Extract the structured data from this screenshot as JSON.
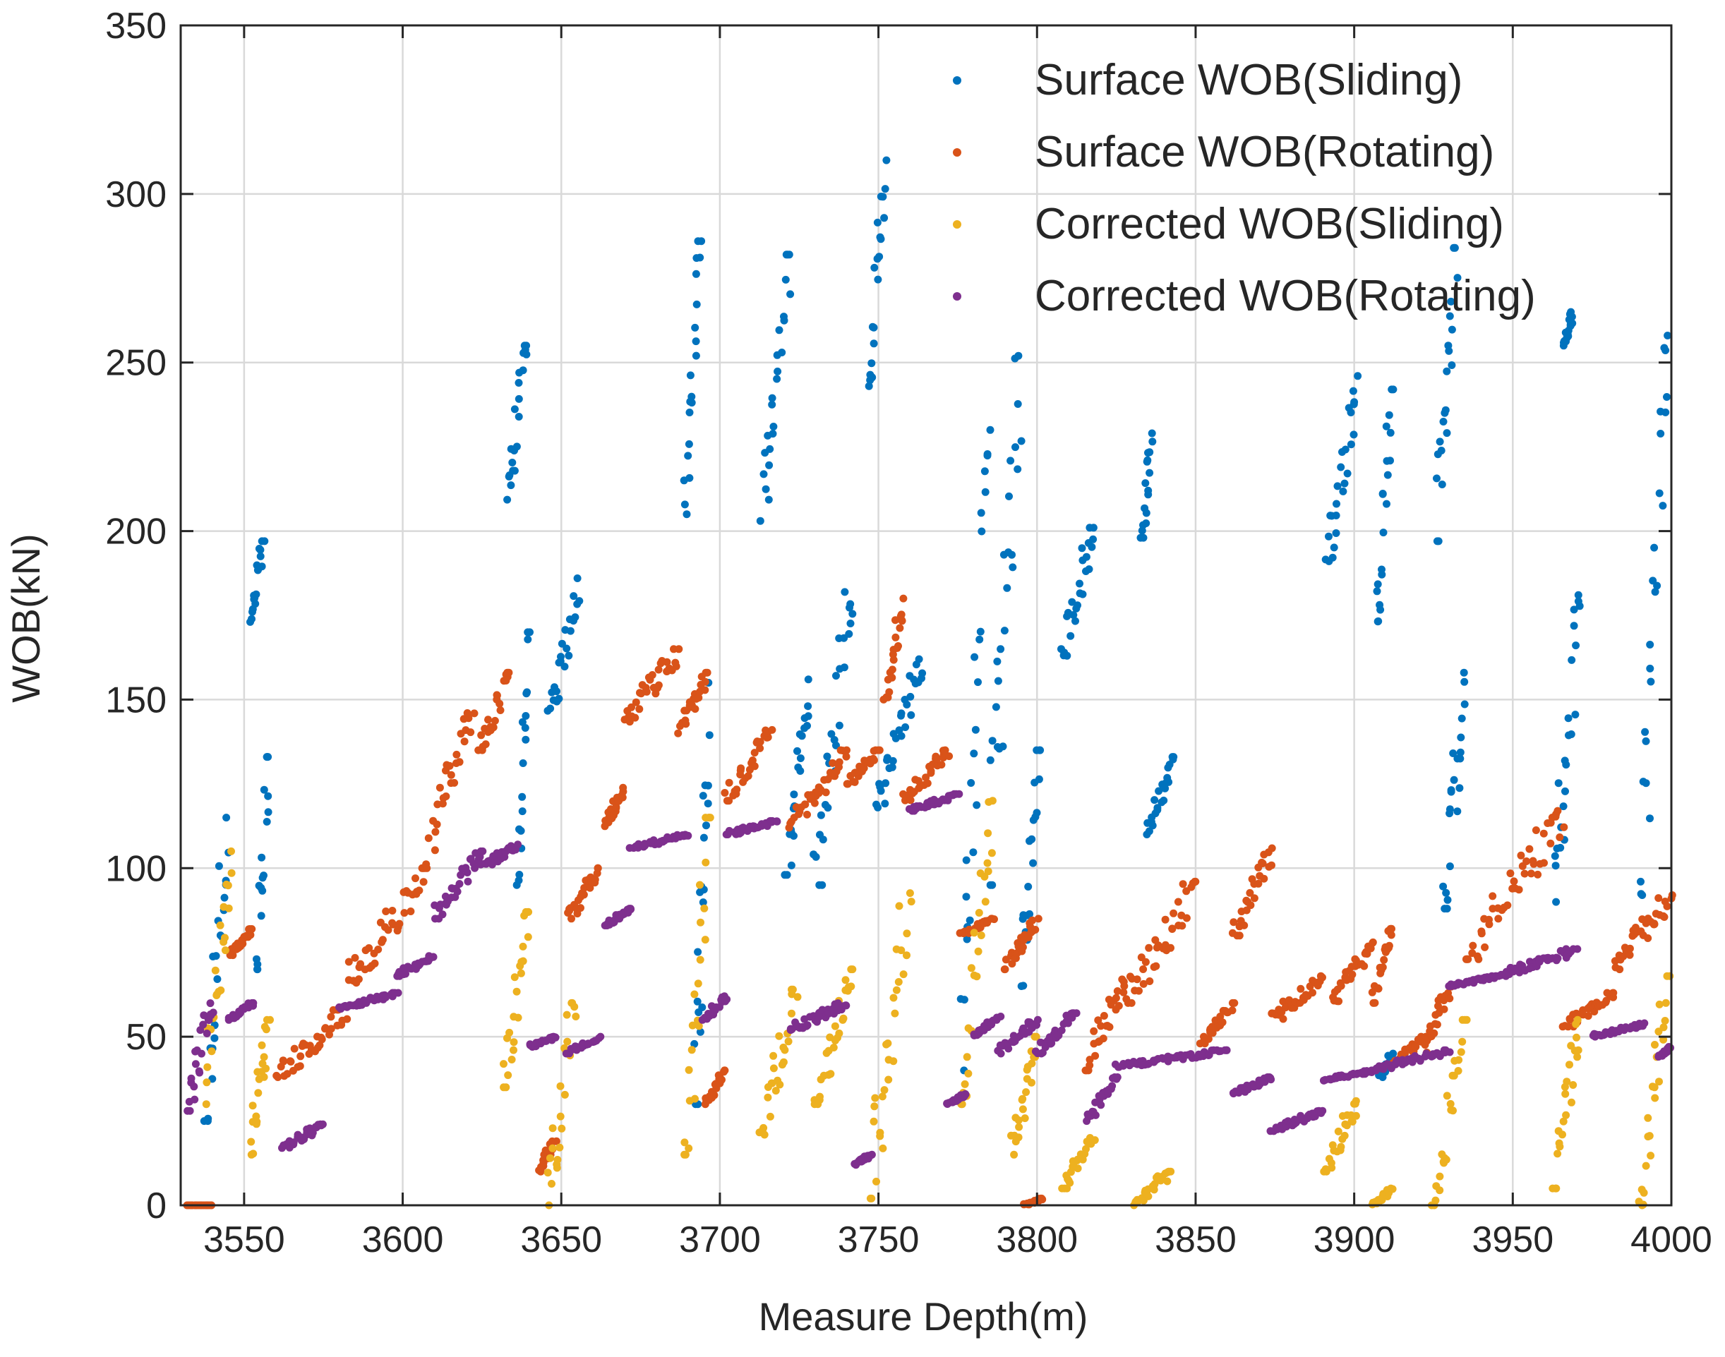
{
  "chart_data": {
    "type": "scatter",
    "title": "",
    "xlabel": "Measure Depth(m)",
    "ylabel": "WOB(kN)",
    "xlim": [
      3530,
      4000
    ],
    "ylim": [
      0,
      350
    ],
    "xticks": [
      3550,
      3600,
      3650,
      3700,
      3750,
      3800,
      3850,
      3900,
      3950,
      4000
    ],
    "yticks": [
      0,
      50,
      100,
      150,
      200,
      250,
      300,
      350
    ],
    "grid": true,
    "legend_position": "top-right",
    "series": [
      {
        "name": "Surface WOB(Sliding)",
        "color": "#0072BD",
        "clusters": [
          {
            "x": [
              3538,
              3545
            ],
            "y": [
              25,
              115
            ]
          },
          {
            "x": [
              3552,
              3556
            ],
            "y": [
              173,
              197
            ]
          },
          {
            "x": [
              3554,
              3558
            ],
            "y": [
              70,
              133
            ]
          },
          {
            "x": [
              3633,
              3639
            ],
            "y": [
              208,
              255
            ]
          },
          {
            "x": [
              3636,
              3640
            ],
            "y": [
              95,
              170
            ]
          },
          {
            "x": [
              3646,
              3656
            ],
            "y": [
              145,
              186
            ]
          },
          {
            "x": [
              3689,
              3694
            ],
            "y": [
              205,
              286
            ]
          },
          {
            "x": [
              3692,
              3697
            ],
            "y": [
              30,
              155
            ]
          },
          {
            "x": [
              3713,
              3722
            ],
            "y": [
              203,
              282
            ]
          },
          {
            "x": [
              3721,
              3728
            ],
            "y": [
              98,
              156
            ]
          },
          {
            "x": [
              3730,
              3742
            ],
            "y": [
              95,
              185
            ]
          },
          {
            "x": [
              3747,
              3752
            ],
            "y": [
              243,
              310
            ]
          },
          {
            "x": [
              3749,
              3764
            ],
            "y": [
              118,
              162
            ]
          },
          {
            "x": [
              3776,
              3785
            ],
            "y": [
              40,
              230
            ]
          },
          {
            "x": [
              3785,
              3795
            ],
            "y": [
              95,
              252
            ]
          },
          {
            "x": [
              3795,
              3801
            ],
            "y": [
              65,
              135
            ]
          },
          {
            "x": [
              3808,
              3818
            ],
            "y": [
              163,
              201
            ]
          },
          {
            "x": [
              3833,
              3836
            ],
            "y": [
              198,
              229
            ]
          },
          {
            "x": [
              3835,
              3843
            ],
            "y": [
              110,
              133
            ]
          },
          {
            "x": [
              3891,
              3901
            ],
            "y": [
              188,
              246
            ]
          },
          {
            "x": [
              3907,
              3912
            ],
            "y": [
              165,
              242
            ]
          },
          {
            "x": [
              3926,
              3932
            ],
            "y": [
              197,
              284
            ]
          },
          {
            "x": [
              3928,
              3935
            ],
            "y": [
              88,
              158
            ]
          },
          {
            "x": [
              3963,
              3971
            ],
            "y": [
              90,
              181
            ]
          },
          {
            "x": [
              3966,
              3969
            ],
            "y": [
              255,
              265
            ]
          },
          {
            "x": [
              3990,
              3999
            ],
            "y": [
              92,
              258
            ]
          },
          {
            "x": [
              3908,
              3912
            ],
            "y": [
              38,
              45
            ]
          }
        ]
      },
      {
        "name": "Surface WOB(Rotating)",
        "color": "#D95319",
        "clusters": [
          {
            "x": [
              3532,
              3540
            ],
            "y": [
              0,
              0
            ]
          },
          {
            "x": [
              3545,
              3553
            ],
            "y": [
              74,
              82
            ]
          },
          {
            "x": [
              3560,
              3582
            ],
            "y": [
              38,
              58
            ]
          },
          {
            "x": [
              3583,
              3606
            ],
            "y": [
              66,
              97
            ]
          },
          {
            "x": [
              3606,
              3622
            ],
            "y": [
              100,
              146
            ]
          },
          {
            "x": [
              3624,
              3634
            ],
            "y": [
              135,
              158
            ]
          },
          {
            "x": [
              3643,
              3648
            ],
            "y": [
              10,
              19
            ]
          },
          {
            "x": [
              3652,
              3662
            ],
            "y": [
              85,
              100
            ]
          },
          {
            "x": [
              3664,
              3670
            ],
            "y": [
              112,
              125
            ]
          },
          {
            "x": [
              3670,
              3687
            ],
            "y": [
              143,
              165
            ]
          },
          {
            "x": [
              3687,
              3696
            ],
            "y": [
              140,
              158
            ]
          },
          {
            "x": [
              3695,
              3702
            ],
            "y": [
              30,
              40
            ]
          },
          {
            "x": [
              3702,
              3716
            ],
            "y": [
              120,
              141
            ]
          },
          {
            "x": [
              3722,
              3740
            ],
            "y": [
              112,
              135
            ]
          },
          {
            "x": [
              3740,
              3750
            ],
            "y": [
              125,
              135
            ]
          },
          {
            "x": [
              3752,
              3758
            ],
            "y": [
              150,
              180
            ]
          },
          {
            "x": [
              3758,
              3772
            ],
            "y": [
              120,
              135
            ]
          },
          {
            "x": [
              3776,
              3786
            ],
            "y": [
              80,
              85
            ]
          },
          {
            "x": [
              3790,
              3800
            ],
            "y": [
              70,
              85
            ]
          },
          {
            "x": [
              3815,
              3828
            ],
            "y": [
              40,
              68
            ]
          },
          {
            "x": [
              3828,
              3850
            ],
            "y": [
              60,
              96
            ]
          },
          {
            "x": [
              3852,
              3862
            ],
            "y": [
              48,
              60
            ]
          },
          {
            "x": [
              3862,
              3874
            ],
            "y": [
              80,
              106
            ]
          },
          {
            "x": [
              3874,
              3890
            ],
            "y": [
              55,
              68
            ]
          },
          {
            "x": [
              3893,
              3906
            ],
            "y": [
              60,
              78
            ]
          },
          {
            "x": [
              3906,
              3912
            ],
            "y": [
              60,
              82
            ]
          },
          {
            "x": [
              3912,
              3922
            ],
            "y": [
              42,
              50
            ]
          },
          {
            "x": [
              3922,
              3930
            ],
            "y": [
              45,
              65
            ]
          },
          {
            "x": [
              3935,
              3966
            ],
            "y": [
              73,
              117
            ]
          },
          {
            "x": [
              3966,
              3982
            ],
            "y": [
              53,
              63
            ]
          },
          {
            "x": [
              3982,
              4000
            ],
            "y": [
              70,
              92
            ]
          },
          {
            "x": [
              3796,
              3802
            ],
            "y": [
              0,
              2
            ]
          }
        ]
      },
      {
        "name": "Corrected WOB(Sliding)",
        "color": "#EDB120",
        "clusters": [
          {
            "x": [
              3538,
              3546
            ],
            "y": [
              30,
              105
            ]
          },
          {
            "x": [
              3552,
              3558
            ],
            "y": [
              15,
              55
            ]
          },
          {
            "x": [
              3632,
              3640
            ],
            "y": [
              35,
              87
            ]
          },
          {
            "x": [
              3646,
              3654
            ],
            "y": [
              0,
              60
            ]
          },
          {
            "x": [
              3689,
              3697
            ],
            "y": [
              15,
              115
            ]
          },
          {
            "x": [
              3713,
              3724
            ],
            "y": [
              20,
              64
            ]
          },
          {
            "x": [
              3730,
              3742
            ],
            "y": [
              30,
              70
            ]
          },
          {
            "x": [
              3747,
              3760
            ],
            "y": [
              2,
              98
            ]
          },
          {
            "x": [
              3776,
              3786
            ],
            "y": [
              30,
              120
            ]
          },
          {
            "x": [
              3792,
              3800
            ],
            "y": [
              15,
              50
            ]
          },
          {
            "x": [
              3808,
              3818
            ],
            "y": [
              5,
              20
            ]
          },
          {
            "x": [
              3830,
              3842
            ],
            "y": [
              0,
              10
            ]
          },
          {
            "x": [
              3891,
              3901
            ],
            "y": [
              10,
              32
            ]
          },
          {
            "x": [
              3906,
              3912
            ],
            "y": [
              0,
              5
            ]
          },
          {
            "x": [
              3925,
              3935
            ],
            "y": [
              0,
              55
            ]
          },
          {
            "x": [
              3963,
              3971
            ],
            "y": [
              5,
              55
            ]
          },
          {
            "x": [
              3990,
              3999
            ],
            "y": [
              0,
              68
            ]
          }
        ]
      },
      {
        "name": "Corrected WOB(Rotating)",
        "color": "#7E2F8E",
        "clusters": [
          {
            "x": [
              3532,
              3540
            ],
            "y": [
              28,
              62
            ]
          },
          {
            "x": [
              3545,
              3553
            ],
            "y": [
              55,
              60
            ]
          },
          {
            "x": [
              3562,
              3575
            ],
            "y": [
              17,
              24
            ]
          },
          {
            "x": [
              3580,
              3598
            ],
            "y": [
              58,
              63
            ]
          },
          {
            "x": [
              3598,
              3610
            ],
            "y": [
              68,
              74
            ]
          },
          {
            "x": [
              3610,
              3625
            ],
            "y": [
              85,
              105
            ]
          },
          {
            "x": [
              3625,
              3636
            ],
            "y": [
              100,
              107
            ]
          },
          {
            "x": [
              3640,
              3648
            ],
            "y": [
              47,
              50
            ]
          },
          {
            "x": [
              3652,
              3662
            ],
            "y": [
              45,
              50
            ]
          },
          {
            "x": [
              3664,
              3672
            ],
            "y": [
              83,
              88
            ]
          },
          {
            "x": [
              3672,
              3690
            ],
            "y": [
              106,
              110
            ]
          },
          {
            "x": [
              3695,
              3702
            ],
            "y": [
              55,
              62
            ]
          },
          {
            "x": [
              3702,
              3718
            ],
            "y": [
              110,
              114
            ]
          },
          {
            "x": [
              3722,
              3740
            ],
            "y": [
              52,
              60
            ]
          },
          {
            "x": [
              3742,
              3748
            ],
            "y": [
              12,
              15
            ]
          },
          {
            "x": [
              3760,
              3775
            ],
            "y": [
              117,
              122
            ]
          },
          {
            "x": [
              3772,
              3778
            ],
            "y": [
              30,
              33
            ]
          },
          {
            "x": [
              3780,
              3788
            ],
            "y": [
              50,
              56
            ]
          },
          {
            "x": [
              3788,
              3800
            ],
            "y": [
              45,
              55
            ]
          },
          {
            "x": [
              3800,
              3812
            ],
            "y": [
              45,
              57
            ]
          },
          {
            "x": [
              3816,
              3825
            ],
            "y": [
              25,
              38
            ]
          },
          {
            "x": [
              3825,
              3860
            ],
            "y": [
              41,
              46
            ]
          },
          {
            "x": [
              3862,
              3874
            ],
            "y": [
              33,
              38
            ]
          },
          {
            "x": [
              3874,
              3890
            ],
            "y": [
              22,
              28
            ]
          },
          {
            "x": [
              3890,
              3906
            ],
            "y": [
              37,
              40
            ]
          },
          {
            "x": [
              3906,
              3930
            ],
            "y": [
              40,
              46
            ]
          },
          {
            "x": [
              3930,
              3945
            ],
            "y": [
              65,
              68
            ]
          },
          {
            "x": [
              3945,
              3970
            ],
            "y": [
              68,
              76
            ]
          },
          {
            "x": [
              3975,
              3992
            ],
            "y": [
              50,
              54
            ]
          },
          {
            "x": [
              3996,
              4000
            ],
            "y": [
              44,
              47
            ]
          }
        ]
      }
    ]
  }
}
